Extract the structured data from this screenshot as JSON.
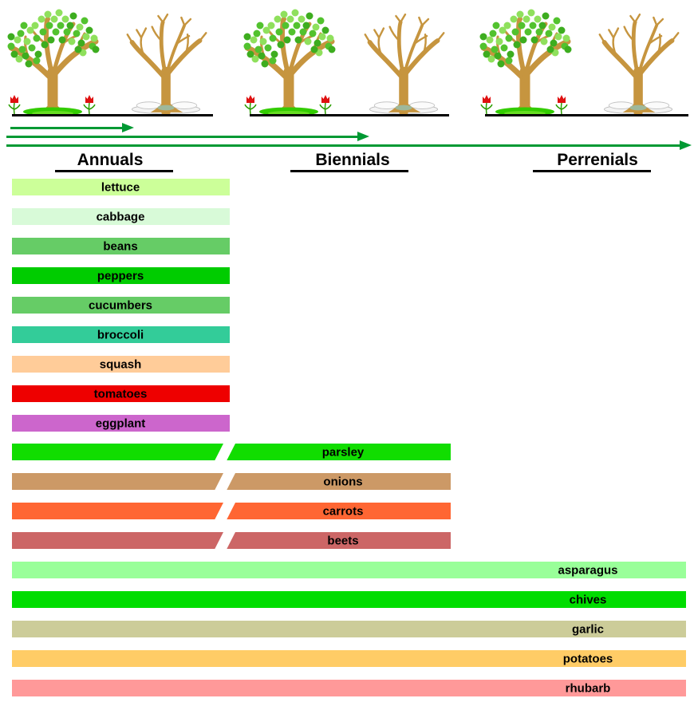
{
  "diagram": {
    "categories": [
      {
        "label": "Annuals"
      },
      {
        "label": "Biennials"
      },
      {
        "label": "Perrenials"
      }
    ],
    "arrow_color": "#009933",
    "bars": [
      {
        "label": "lettuce",
        "color": "#CCFF99",
        "group": "annual"
      },
      {
        "label": "cabbage",
        "color": "#D8FAD8",
        "group": "annual"
      },
      {
        "label": "beans",
        "color": "#66CC66",
        "group": "annual"
      },
      {
        "label": "peppers",
        "color": "#00CC00",
        "group": "annual"
      },
      {
        "label": "cucumbers",
        "color": "#66CC66",
        "group": "annual"
      },
      {
        "label": "broccoli",
        "color": "#33CC99",
        "group": "annual"
      },
      {
        "label": "squash",
        "color": "#FFCC99",
        "group": "annual"
      },
      {
        "label": "tomatoes",
        "color": "#EE0000",
        "group": "annual"
      },
      {
        "label": "eggplant",
        "color": "#CC66CC",
        "group": "annual"
      },
      {
        "label": "parsley",
        "color": "#11DD00",
        "group": "biennial"
      },
      {
        "label": "onions",
        "color": "#CC9966",
        "group": "biennial"
      },
      {
        "label": "carrots",
        "color": "#FF6633",
        "group": "biennial"
      },
      {
        "label": "beets",
        "color": "#CC6666",
        "group": "biennial"
      },
      {
        "label": "asparagus",
        "color": "#99FF99",
        "group": "perennial"
      },
      {
        "label": "chives",
        "color": "#00DD00",
        "group": "perennial"
      },
      {
        "label": "garlic",
        "color": "#CCCC99",
        "group": "perennial"
      },
      {
        "label": "potatoes",
        "color": "#FFCC66",
        "group": "perennial"
      },
      {
        "label": "rhubarb",
        "color": "#FF9999",
        "group": "perennial"
      }
    ]
  }
}
